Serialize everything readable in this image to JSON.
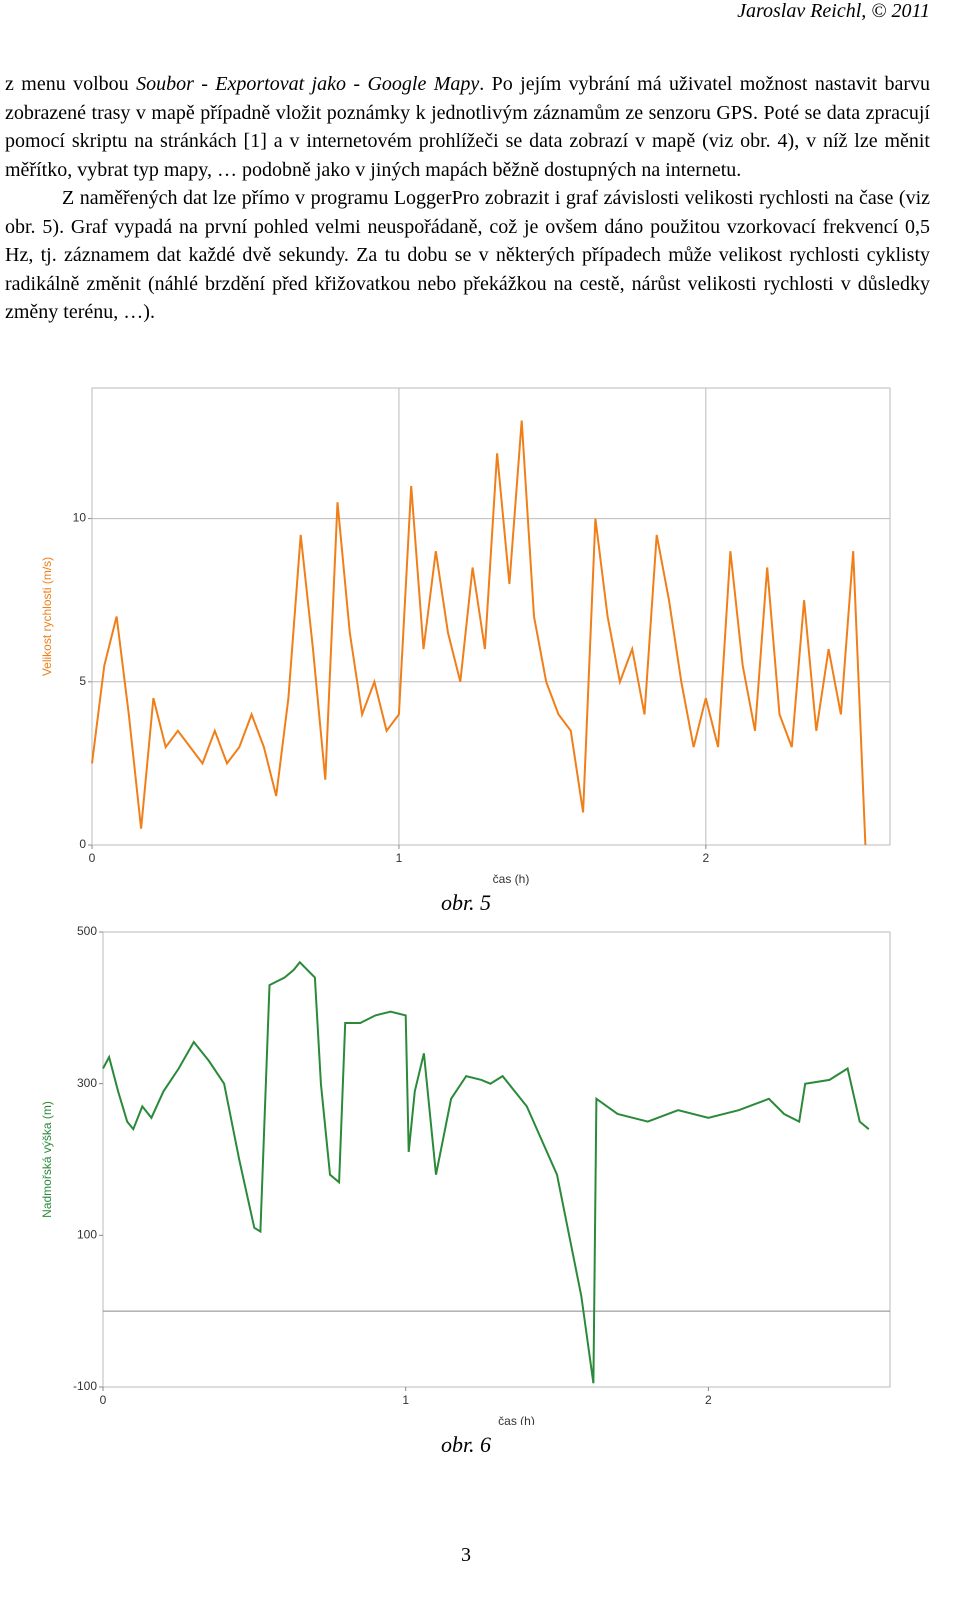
{
  "header": "Jaroslav Reichl, © 2011",
  "paragraphs": [
    [
      "z menu volbou ",
      "Soubor - Exportovat jako - Google Mapy",
      ". Po jejím vybrání má uživatel možnost nastavit barvu zobrazené trasy v mapě případně vložit poznámky k jednotlivým záznamům ze senzoru GPS. Poté se data zpracují pomocí skriptu na stránkách [1] a v internetovém prohlížeči se data zobrazí v mapě (viz obr. 4), v níž lze měnit měřítko, vybrat typ mapy, … podobně jako v jiných mapách běžně dostupných na internetu."
    ],
    [
      "Z naměřených dat lze přímo v programu LoggerPro zobrazit i graf závislosti velikosti rychlosti na čase (viz obr. 5). Graf vypadá na první pohled velmi neuspořádaně, což je ovšem dáno použitou vzorkovací frekvencí 0,5 Hz, tj. záznamem dat každé dvě sekundy. Za tu dobu se v některých případech může velikost rychlosti cyklisty radikálně změnit (náhlé brzdění před křižovatkou nebo překážkou na cestě, nárůst velikosti rychlosti v důsledky změny terénu, …)."
    ]
  ],
  "captions": [
    "obr. 5",
    "obr. 6"
  ],
  "page_number": "3",
  "chart_data": [
    {
      "type": "line",
      "x_label": "čas (h)",
      "y_label": "Velikost rychlosti (m/s)",
      "xlim": [
        0,
        2.6
      ],
      "xticks": [
        0,
        1,
        2
      ],
      "ylim": [
        0,
        14
      ],
      "yticks": [
        0,
        5,
        10
      ],
      "grid": true,
      "zero_line": false,
      "x": [
        0,
        0.04,
        0.08,
        0.12,
        0.16,
        0.2,
        0.24,
        0.28,
        0.32,
        0.36,
        0.4,
        0.44,
        0.48,
        0.52,
        0.56,
        0.6,
        0.64,
        0.68,
        0.72,
        0.76,
        0.8,
        0.84,
        0.88,
        0.92,
        0.96,
        1,
        1.04,
        1.08,
        1.12,
        1.16,
        1.2,
        1.24,
        1.28,
        1.32,
        1.36,
        1.4,
        1.44,
        1.48,
        1.52,
        1.56,
        1.6,
        1.64,
        1.68,
        1.72,
        1.76,
        1.8,
        1.84,
        1.88,
        1.92,
        1.96,
        2,
        2.04,
        2.08,
        2.12,
        2.16,
        2.2,
        2.24,
        2.28,
        2.32,
        2.36,
        2.4,
        2.44,
        2.48,
        2.52
      ],
      "series": [
        {
          "color": "#f07f1a",
          "values": [
            2.5,
            5.5,
            7,
            4,
            0.5,
            4.5,
            3,
            3.5,
            3,
            2.5,
            3.5,
            2.5,
            3,
            4,
            3,
            1.5,
            4.5,
            9.5,
            6,
            2,
            10.5,
            6.5,
            4,
            5,
            3.5,
            4,
            11,
            6,
            9,
            6.5,
            5,
            8.5,
            6,
            12,
            8,
            13,
            7,
            5,
            4,
            3.5,
            1,
            10,
            7,
            5,
            6,
            4,
            9.5,
            7.5,
            5,
            3,
            4.5,
            3,
            9,
            5.5,
            3.5,
            8.5,
            4,
            3,
            7.5,
            3.5,
            6,
            4,
            9,
            0
          ]
        }
      ]
    },
    {
      "type": "line",
      "x_label": "čas (h)",
      "y_label": "Nadmořská výška (m)",
      "xlim": [
        0,
        2.6
      ],
      "xticks": [
        0,
        1,
        2
      ],
      "ylim": [
        -100,
        500
      ],
      "yticks": [
        -100,
        100,
        300,
        500
      ],
      "grid": false,
      "zero_line": true,
      "x": [
        0,
        0.02,
        0.05,
        0.08,
        0.1,
        0.13,
        0.16,
        0.2,
        0.25,
        0.3,
        0.35,
        0.4,
        0.45,
        0.5,
        0.52,
        0.55,
        0.6,
        0.63,
        0.65,
        0.7,
        0.72,
        0.75,
        0.78,
        0.8,
        0.85,
        0.9,
        0.95,
        1,
        1.01,
        1.03,
        1.06,
        1.1,
        1.15,
        1.2,
        1.25,
        1.28,
        1.32,
        1.4,
        1.5,
        1.58,
        1.62,
        1.63,
        1.7,
        1.8,
        1.9,
        2,
        2.1,
        2.2,
        2.25,
        2.3,
        2.32,
        2.4,
        2.46,
        2.5,
        2.53
      ],
      "series": [
        {
          "color": "#2a8a3a",
          "values": [
            320,
            335,
            290,
            250,
            240,
            270,
            255,
            290,
            320,
            355,
            330,
            300,
            200,
            110,
            105,
            430,
            440,
            450,
            460,
            440,
            300,
            180,
            170,
            380,
            380,
            390,
            395,
            390,
            210,
            290,
            340,
            180,
            280,
            310,
            305,
            300,
            310,
            270,
            180,
            20,
            -95,
            280,
            260,
            250,
            265,
            255,
            265,
            280,
            260,
            250,
            300,
            305,
            320,
            250,
            240
          ]
        }
      ]
    }
  ]
}
